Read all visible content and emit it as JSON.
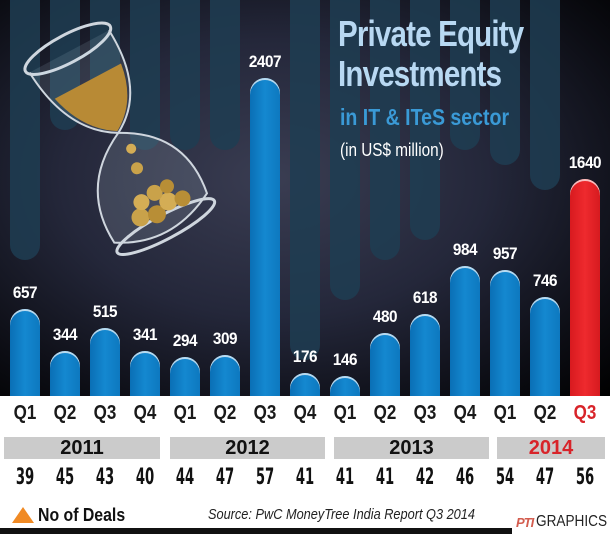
{
  "chart_data": {
    "type": "bar",
    "title": "Private Equity Investments",
    "subtitle": "in IT & ITeS sector",
    "units": "(in US$ million)",
    "xlabel": "",
    "ylabel": "US$ million",
    "categories": [
      "Q1 2011",
      "Q2 2011",
      "Q3 2011",
      "Q4 2011",
      "Q1 2012",
      "Q2 2012",
      "Q3 2012",
      "Q4 2012",
      "Q1 2013",
      "Q2 2013",
      "Q3 2013",
      "Q4 2013",
      "Q1 2014",
      "Q2 2014",
      "Q3 2014"
    ],
    "series": [
      {
        "name": "Investments (US$ million)",
        "values": [
          657,
          344,
          515,
          341,
          294,
          309,
          2407,
          176,
          146,
          480,
          618,
          984,
          957,
          746,
          1640
        ]
      },
      {
        "name": "No of Deals",
        "values": [
          39,
          45,
          43,
          40,
          44,
          47,
          57,
          41,
          41,
          41,
          42,
          46,
          54,
          47,
          56
        ]
      }
    ],
    "highlight_index": 14,
    "colors": {
      "bar": "#1488d0",
      "highlight": "#e8262b",
      "deals_marker": "#f08a24"
    },
    "ylim": [
      0,
      2407
    ],
    "grid": false,
    "legend_position": "bottom-left"
  },
  "title": {
    "line1": "Private Equity",
    "line2": "Investments",
    "subtitle": "in IT & ITeS sector",
    "units": "(in US$ million)"
  },
  "quarters": [
    "Q1",
    "Q2",
    "Q3",
    "Q4",
    "Q1",
    "Q2",
    "Q3",
    "Q4",
    "Q1",
    "Q2",
    "Q3",
    "Q4",
    "Q1",
    "Q2",
    "Q3"
  ],
  "years": [
    "2011",
    "2012",
    "2013",
    "2014"
  ],
  "bar_labels": [
    "657",
    "344",
    "515",
    "341",
    "294",
    "309",
    "2407",
    "176",
    "146",
    "480",
    "618",
    "984",
    "957",
    "746",
    "1640"
  ],
  "deals": [
    "39",
    "45",
    "43",
    "40",
    "44",
    "47",
    "57",
    "41",
    "41",
    "41",
    "42",
    "46",
    "54",
    "47",
    "56"
  ],
  "legend": {
    "label": "No of Deals",
    "icon": "triangle-icon"
  },
  "source": "Source: PwC MoneyTree India Report Q3 2014",
  "credit": {
    "logo": "PTI",
    "text": "GRAPHICS"
  }
}
